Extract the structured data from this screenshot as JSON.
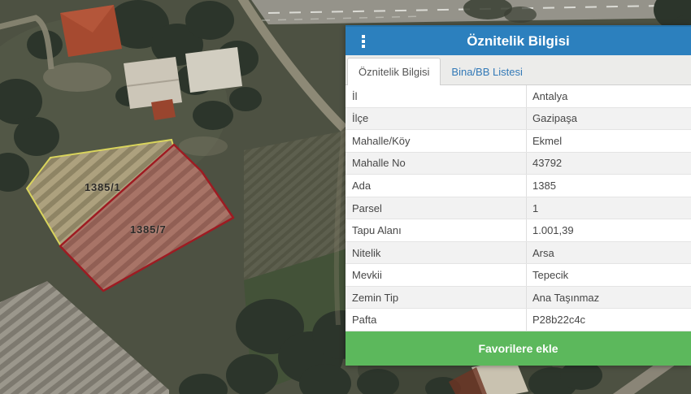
{
  "panel": {
    "title": "Öznitelik Bilgisi",
    "menu_icon": "kebab-menu-icon",
    "tabs": [
      {
        "label": "Öznitelik Bilgisi",
        "active": true
      },
      {
        "label": "Bina/BB Listesi",
        "active": false
      }
    ],
    "attributes": [
      {
        "label": "İl",
        "value": "Antalya"
      },
      {
        "label": "İlçe",
        "value": "Gazipaşa"
      },
      {
        "label": "Mahalle/Köy",
        "value": "Ekmel"
      },
      {
        "label": "Mahalle No",
        "value": "43792"
      },
      {
        "label": "Ada",
        "value": "1385"
      },
      {
        "label": "Parsel",
        "value": "1"
      },
      {
        "label": "Tapu Alanı",
        "value": "1.001,39"
      },
      {
        "label": "Nitelik",
        "value": "Arsa"
      },
      {
        "label": "Mevkii",
        "value": "Tepecik"
      },
      {
        "label": "Zemin Tip",
        "value": "Ana Taşınmaz"
      },
      {
        "label": "Pafta",
        "value": "P28b22c4c"
      }
    ],
    "favorite_button_label": "Favorilere ekle"
  },
  "map": {
    "type": "satellite",
    "parcel_labels": [
      {
        "text": "1385/1"
      },
      {
        "text": "1385/7"
      }
    ],
    "colors": {
      "header_blue": "#2c80be",
      "button_green": "#5cb85c",
      "selected_parcel_outline": "#9e1b22",
      "neighbor_parcel_outline": "#d9d45c"
    }
  }
}
